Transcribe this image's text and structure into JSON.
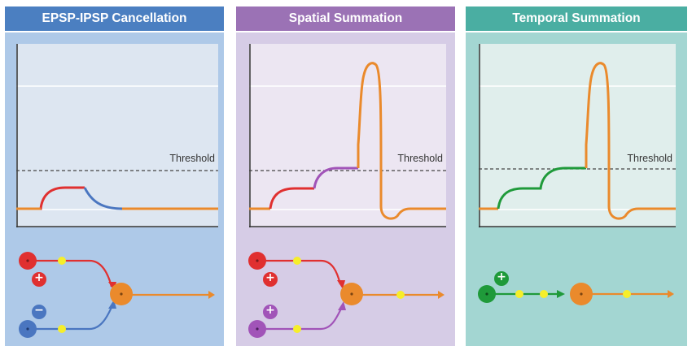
{
  "panels": [
    {
      "title": "EPSP-IPSP Cancellation",
      "header_color": "#4b7fc1",
      "bg_color": "#aec9e8",
      "threshold_label": "Threshold",
      "inputs": [
        {
          "sign": "+",
          "color": "#e03030"
        },
        {
          "sign": "−",
          "color": "#4a76c0"
        }
      ]
    },
    {
      "title": "Spatial Summation",
      "header_color": "#9b72b5",
      "bg_color": "#d6cce6",
      "threshold_label": "Threshold",
      "inputs": [
        {
          "sign": "+",
          "color": "#e03030"
        },
        {
          "sign": "+",
          "color": "#a154b8"
        }
      ]
    },
    {
      "title": "Temporal Summation",
      "header_color": "#4aaea2",
      "bg_color": "#a3d6d2",
      "threshold_label": "Threshold",
      "inputs": [
        {
          "sign": "+",
          "color": "#1f9a3a"
        }
      ]
    }
  ],
  "colors": {
    "output_axon": "#ea8a2c",
    "synapse_marker": "#f6ee2a",
    "threshold_line": "#444444"
  }
}
